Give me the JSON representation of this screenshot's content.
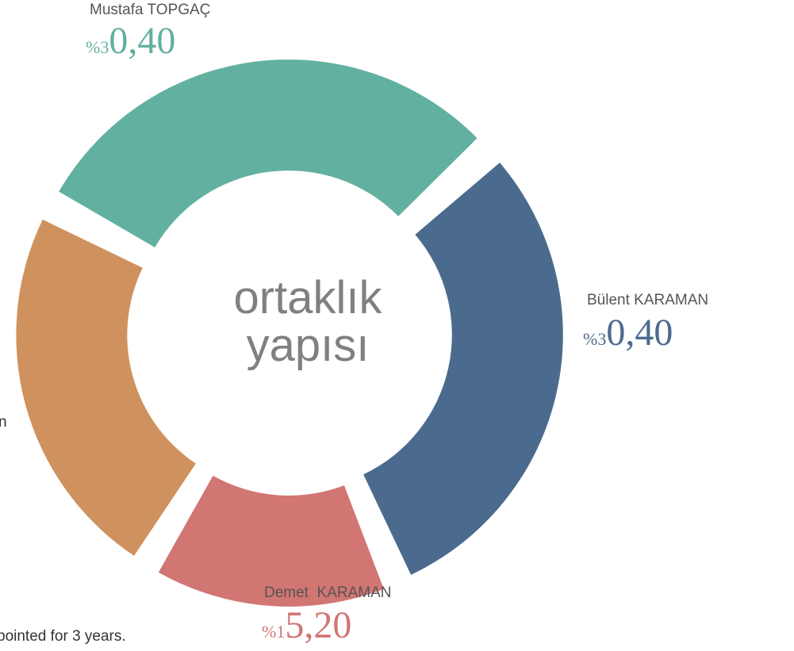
{
  "chart_data": {
    "type": "pie",
    "center_label": [
      "ortaklık",
      "yapısı"
    ],
    "categories": [
      "Mustafa TOPGAÇ",
      "Bülent KARAMAN",
      "Demet  KARAMAN",
      null
    ],
    "values": [
      30.4,
      30.4,
      15.2,
      24
    ],
    "value_labels": [
      "%30,40",
      "%30,40",
      "%15,20",
      null
    ],
    "colors": [
      "#62b0a0",
      "#4b6b8e",
      "#d17673",
      "#cf925e"
    ],
    "annotations": [
      "n",
      "pointed for 3 years."
    ]
  }
}
